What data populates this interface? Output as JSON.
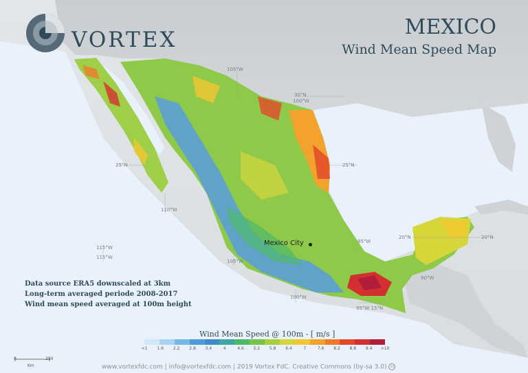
{
  "header": {
    "brand": "VORTEX",
    "title": "MEXICO",
    "subtitle": "Wind Mean Speed Map"
  },
  "coords": {
    "c1": "105°W",
    "c2": "30°N",
    "c3": "100°W",
    "c4": "25°N",
    "c5": "25°N",
    "c6": "110°W",
    "c7": "20°N",
    "c8": "20°N",
    "c9": "95°W",
    "c10": "115°W",
    "c11": "115°W",
    "c12": "105°W",
    "c13": "90°W",
    "c14": "100°W",
    "c15": "95°W 15°N"
  },
  "city": {
    "name": "Mexico City"
  },
  "info": {
    "line1": "Data source ERA5 downscaled at 3km",
    "line2": "Long-term averaged periode 2008-2017",
    "line3": "Wind mean speed averaged at 100m height"
  },
  "legend": {
    "title": "Wind Mean Speed @ 100m - [ m/s ]",
    "ticks": [
      "<1",
      "1.6",
      "2.2",
      "2.8",
      "3.4",
      "4",
      "4.6",
      "5.2",
      "5.8",
      "6.4",
      "7",
      "7.6",
      "8.2",
      "8.8",
      "9.4",
      ">10"
    ],
    "colors": [
      "#cfe7f7",
      "#a9d4f0",
      "#78b7e6",
      "#4f9ad8",
      "#3f8bc9",
      "#3fa6a2",
      "#4fb86a",
      "#76c24b",
      "#a7cf3d",
      "#d6d63a",
      "#f2c531",
      "#f4a22e",
      "#ee7a2a",
      "#e34a2a",
      "#d2302e",
      "#b21e3a"
    ]
  },
  "scale": {
    "start": "0",
    "end": "250",
    "unit": "Km"
  },
  "footer": {
    "text": "www.vortexfdc.com | info@vortexfdc.com | 2019 Vortex FdC. Creative Commons (by-sa 3.0)"
  }
}
